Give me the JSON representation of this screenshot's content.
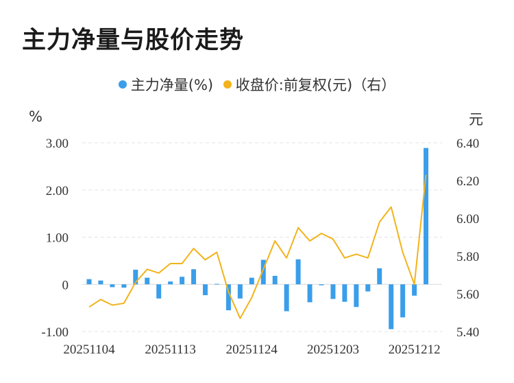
{
  "chart_data": {
    "type": "bar+line",
    "title": "主力净量与股价走势",
    "legend": [
      {
        "name": "主力净量(%)",
        "color": "#3a9eea"
      },
      {
        "name": "收盘价:前复权(元)（右）",
        "color": "#f2b31b"
      }
    ],
    "ylabel_left": "%",
    "ylabel_right": "元",
    "ylim_left": [
      -1.0,
      3.0
    ],
    "ylim_right": [
      5.4,
      6.4
    ],
    "yticks_left": [
      "3.00",
      "2.00",
      "1.00",
      "0",
      "-1.00"
    ],
    "yticks_right": [
      "6.40",
      "6.20",
      "6.00",
      "5.80",
      "5.60",
      "5.40"
    ],
    "xtick_labels": [
      "20251104",
      "20251113",
      "20251124",
      "20251203",
      "20251212"
    ],
    "xtick_indices": [
      0,
      7,
      14,
      21,
      28
    ],
    "series": [
      {
        "name": "主力净量(%)",
        "type": "bar",
        "color": "#3a9eea",
        "values": [
          0.11,
          0.08,
          -0.06,
          -0.07,
          0.31,
          0.14,
          -0.3,
          0.06,
          0.16,
          0.32,
          -0.23,
          0.01,
          -0.55,
          -0.3,
          0.14,
          0.52,
          0.18,
          -0.57,
          0.53,
          -0.38,
          -0.02,
          -0.31,
          -0.37,
          -0.48,
          -0.15,
          0.34,
          -0.95,
          -0.7,
          -0.24,
          2.89
        ]
      },
      {
        "name": "收盘价:前复权(元)（右）",
        "type": "line",
        "color": "#f2b31b",
        "values": [
          5.53,
          5.57,
          5.54,
          5.55,
          5.66,
          5.73,
          5.71,
          5.76,
          5.76,
          5.84,
          5.78,
          5.82,
          5.61,
          5.47,
          5.58,
          5.73,
          5.88,
          5.79,
          5.95,
          5.88,
          5.92,
          5.89,
          5.79,
          5.81,
          5.79,
          5.98,
          6.06,
          5.82,
          5.65,
          6.23
        ]
      }
    ]
  }
}
